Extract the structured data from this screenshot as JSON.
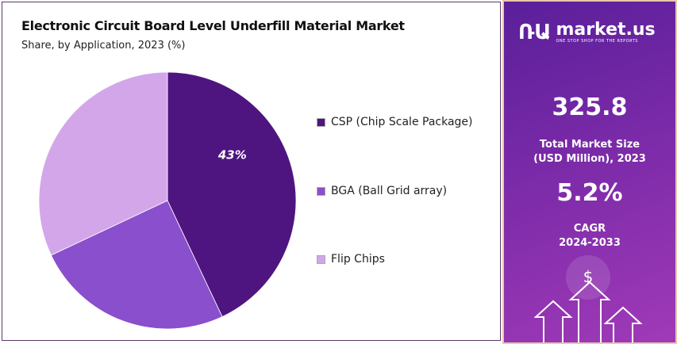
{
  "chart_data": {
    "type": "pie",
    "title": "Electronic Circuit Board Level Underfill Material Market",
    "subtitle": "Share, by Application, 2023 (%)",
    "categories": [
      "CSP (Chip Scale Package)",
      "BGA (Ball Grid array)",
      "Flip Chips"
    ],
    "values": [
      43,
      25,
      32
    ],
    "data_labels": [
      "43%",
      "",
      ""
    ],
    "colors": [
      "#4e1580",
      "#8a4fcc",
      "#d3a6ea"
    ],
    "legend": "right"
  },
  "brand": {
    "name": "market.us",
    "tagline": "ONE STOP SHOP FOR THE REPORTS"
  },
  "stats": {
    "market_size": "325.8",
    "market_size_label_1": "Total Market Size",
    "market_size_label_2": "(USD Million), 2023",
    "cagr": "5.2%",
    "cagr_label_1": "CAGR",
    "cagr_label_2": "2024-2033"
  },
  "icons": {
    "dollar": "$"
  }
}
